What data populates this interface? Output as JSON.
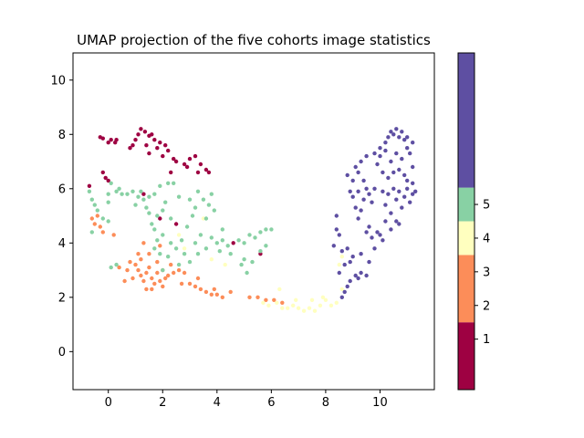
{
  "chart_data": {
    "type": "scatter",
    "title": "UMAP projection of the five cohorts image statistics",
    "xlabel": "",
    "ylabel": "",
    "xlim": [
      -1.3,
      12.0
    ],
    "ylim": [
      -1.4,
      11.0
    ],
    "x_ticks": [
      0,
      2,
      4,
      6,
      8,
      10
    ],
    "y_ticks": [
      0,
      2,
      4,
      6,
      8,
      10
    ],
    "x_tick_labels": [
      "0",
      "2",
      "4",
      "6",
      "8",
      "10"
    ],
    "y_tick_labels": [
      "0",
      "2",
      "4",
      "6",
      "8",
      "10"
    ],
    "grid": false,
    "marker_size": "small",
    "series": [
      {
        "color": "#9e0142",
        "points": [
          [
            -0.3,
            7.9
          ],
          [
            -0.2,
            7.85
          ],
          [
            0.0,
            7.7
          ],
          [
            0.1,
            7.8
          ],
          [
            0.25,
            7.7
          ],
          [
            0.3,
            7.8
          ],
          [
            0.9,
            7.6
          ],
          [
            1.0,
            7.8
          ],
          [
            1.1,
            8.0
          ],
          [
            1.2,
            8.2
          ],
          [
            1.35,
            8.1
          ],
          [
            1.5,
            7.95
          ],
          [
            1.6,
            8.0
          ],
          [
            1.7,
            7.8
          ],
          [
            1.8,
            7.5
          ],
          [
            1.9,
            7.7
          ],
          [
            2.1,
            7.6
          ],
          [
            2.2,
            7.4
          ],
          [
            1.4,
            7.6
          ],
          [
            2.0,
            7.2
          ],
          [
            2.5,
            7.0
          ],
          [
            2.8,
            6.9
          ],
          [
            3.0,
            7.1
          ],
          [
            3.2,
            7.2
          ],
          [
            3.4,
            6.9
          ],
          [
            3.6,
            6.7
          ],
          [
            3.7,
            6.6
          ],
          [
            3.3,
            6.6
          ],
          [
            2.9,
            6.8
          ],
          [
            2.3,
            6.6
          ],
          [
            -0.2,
            6.6
          ],
          [
            -0.1,
            6.4
          ],
          [
            0.0,
            6.3
          ],
          [
            -0.7,
            6.1
          ],
          [
            1.9,
            4.9
          ],
          [
            2.5,
            4.7
          ],
          [
            4.6,
            4.0
          ],
          [
            5.6,
            3.6
          ],
          [
            1.3,
            5.8
          ],
          [
            1.5,
            7.3
          ],
          [
            0.8,
            7.5
          ],
          [
            2.4,
            7.1
          ]
        ]
      },
      {
        "color": "#fc8d59",
        "points": [
          [
            -0.6,
            4.9
          ],
          [
            -0.5,
            4.7
          ],
          [
            -0.3,
            4.6
          ],
          [
            -0.2,
            4.4
          ],
          [
            0.2,
            4.3
          ],
          [
            -0.4,
            5.0
          ],
          [
            0.4,
            3.1
          ],
          [
            0.7,
            3.0
          ],
          [
            0.8,
            3.3
          ],
          [
            1.0,
            3.2
          ],
          [
            1.1,
            3.0
          ],
          [
            1.2,
            2.8
          ],
          [
            0.9,
            2.7
          ],
          [
            1.3,
            2.6
          ],
          [
            1.4,
            2.9
          ],
          [
            1.5,
            3.1
          ],
          [
            1.6,
            2.7
          ],
          [
            1.7,
            2.5
          ],
          [
            1.8,
            2.9
          ],
          [
            1.9,
            2.6
          ],
          [
            2.0,
            2.4
          ],
          [
            2.1,
            2.7
          ],
          [
            2.2,
            2.8
          ],
          [
            2.4,
            2.9
          ],
          [
            2.6,
            3.0
          ],
          [
            2.8,
            2.9
          ],
          [
            1.2,
            3.4
          ],
          [
            1.5,
            3.6
          ],
          [
            1.8,
            3.3
          ],
          [
            1.3,
            4.0
          ],
          [
            1.4,
            2.3
          ],
          [
            1.6,
            2.3
          ],
          [
            3.0,
            2.5
          ],
          [
            3.2,
            2.4
          ],
          [
            3.4,
            2.3
          ],
          [
            3.6,
            2.2
          ],
          [
            3.8,
            2.1
          ],
          [
            4.0,
            2.1
          ],
          [
            4.2,
            2.0
          ],
          [
            3.9,
            2.3
          ],
          [
            4.5,
            2.2
          ],
          [
            5.2,
            2.0
          ],
          [
            5.5,
            2.0
          ],
          [
            5.8,
            1.9
          ],
          [
            6.1,
            1.9
          ],
          [
            6.4,
            1.8
          ],
          [
            0.6,
            2.6
          ],
          [
            2.0,
            3.0
          ],
          [
            2.3,
            3.2
          ],
          [
            1.9,
            3.9
          ],
          [
            2.7,
            2.5
          ],
          [
            3.3,
            2.7
          ],
          [
            1.1,
            3.6
          ]
        ]
      },
      {
        "color": "#ffffbf",
        "points": [
          [
            5.7,
            1.8
          ],
          [
            5.9,
            1.7
          ],
          [
            6.2,
            1.8
          ],
          [
            6.4,
            1.6
          ],
          [
            6.6,
            1.6
          ],
          [
            6.8,
            1.7
          ],
          [
            7.0,
            1.6
          ],
          [
            7.2,
            1.5
          ],
          [
            7.4,
            1.6
          ],
          [
            7.6,
            1.5
          ],
          [
            7.8,
            1.7
          ],
          [
            8.0,
            1.9
          ],
          [
            8.2,
            1.7
          ],
          [
            8.4,
            1.8
          ],
          [
            7.5,
            1.9
          ],
          [
            6.9,
            1.9
          ],
          [
            6.3,
            2.3
          ],
          [
            7.9,
            2.0
          ],
          [
            8.6,
            2.3
          ],
          [
            8.5,
            3.2
          ],
          [
            8.6,
            3.5
          ],
          [
            3.8,
            3.4
          ],
          [
            2.8,
            3.8
          ],
          [
            3.5,
            4.9
          ],
          [
            4.3,
            3.2
          ],
          [
            2.6,
            4.3
          ]
        ]
      },
      {
        "color": "#88d1a4",
        "points": [
          [
            -0.7,
            5.9
          ],
          [
            -0.6,
            5.6
          ],
          [
            -0.5,
            5.4
          ],
          [
            -0.4,
            5.2
          ],
          [
            -0.2,
            4.9
          ],
          [
            0.0,
            4.8
          ],
          [
            0.0,
            5.8
          ],
          [
            0.3,
            5.9
          ],
          [
            0.5,
            5.8
          ],
          [
            0.7,
            5.8
          ],
          [
            0.4,
            6.0
          ],
          [
            0.1,
            6.2
          ],
          [
            0.9,
            5.9
          ],
          [
            1.1,
            5.7
          ],
          [
            1.3,
            5.6
          ],
          [
            1.5,
            5.7
          ],
          [
            1.7,
            5.8
          ],
          [
            1.2,
            5.9
          ],
          [
            1.9,
            6.1
          ],
          [
            2.2,
            6.2
          ],
          [
            2.4,
            6.2
          ],
          [
            2.1,
            5.5
          ],
          [
            2.3,
            4.9
          ],
          [
            2.6,
            5.7
          ],
          [
            1.5,
            5.1
          ],
          [
            1.6,
            4.7
          ],
          [
            1.7,
            4.5
          ],
          [
            1.8,
            4.1
          ],
          [
            1.7,
            3.8
          ],
          [
            1.9,
            3.6
          ],
          [
            2.0,
            4.3
          ],
          [
            2.3,
            4.0
          ],
          [
            2.5,
            3.8
          ],
          [
            2.7,
            4.1
          ],
          [
            2.8,
            3.6
          ],
          [
            3.0,
            3.3
          ],
          [
            2.9,
            4.6
          ],
          [
            3.1,
            5.0
          ],
          [
            3.2,
            5.3
          ],
          [
            3.0,
            5.6
          ],
          [
            3.3,
            5.9
          ],
          [
            3.5,
            5.6
          ],
          [
            3.7,
            5.4
          ],
          [
            3.8,
            5.8
          ],
          [
            3.9,
            5.2
          ],
          [
            3.6,
            4.9
          ],
          [
            3.4,
            4.3
          ],
          [
            3.2,
            4.0
          ],
          [
            3.3,
            3.6
          ],
          [
            3.6,
            3.8
          ],
          [
            3.8,
            4.2
          ],
          [
            4.0,
            4.0
          ],
          [
            4.2,
            4.1
          ],
          [
            4.4,
            3.9
          ],
          [
            4.1,
            3.7
          ],
          [
            4.8,
            4.1
          ],
          [
            5.0,
            4.0
          ],
          [
            5.2,
            4.3
          ],
          [
            5.4,
            4.2
          ],
          [
            5.6,
            4.4
          ],
          [
            5.8,
            4.5
          ],
          [
            6.0,
            4.5
          ],
          [
            5.8,
            3.9
          ],
          [
            5.6,
            3.7
          ],
          [
            5.0,
            3.4
          ],
          [
            5.3,
            3.3
          ],
          [
            4.9,
            3.2
          ],
          [
            5.1,
            2.9
          ],
          [
            0.1,
            3.1
          ],
          [
            0.3,
            3.2
          ],
          [
            2.0,
            3.0
          ],
          [
            2.2,
            3.5
          ],
          [
            1.4,
            5.3
          ],
          [
            2.0,
            5.2
          ],
          [
            1.8,
            5.0
          ],
          [
            2.6,
            3.2
          ],
          [
            4.5,
            3.6
          ],
          [
            4.2,
            4.5
          ],
          [
            0.0,
            5.5
          ],
          [
            1.0,
            5.4
          ],
          [
            -0.6,
            4.4
          ]
        ]
      },
      {
        "color": "#5e4fa2",
        "points": [
          [
            8.6,
            2.0
          ],
          [
            8.7,
            2.2
          ],
          [
            8.8,
            2.4
          ],
          [
            8.9,
            2.6
          ],
          [
            9.1,
            2.8
          ],
          [
            9.3,
            2.9
          ],
          [
            9.5,
            2.8
          ],
          [
            9.2,
            2.7
          ],
          [
            8.5,
            2.9
          ],
          [
            8.7,
            3.2
          ],
          [
            8.9,
            3.3
          ],
          [
            8.8,
            3.8
          ],
          [
            9.0,
            3.5
          ],
          [
            9.3,
            3.6
          ],
          [
            9.6,
            3.3
          ],
          [
            9.8,
            3.8
          ],
          [
            9.7,
            4.2
          ],
          [
            9.9,
            4.4
          ],
          [
            10.1,
            4.1
          ],
          [
            9.6,
            4.6
          ],
          [
            8.4,
            4.5
          ],
          [
            8.5,
            4.3
          ],
          [
            8.3,
            3.9
          ],
          [
            8.6,
            3.7
          ],
          [
            8.4,
            5.0
          ],
          [
            9.0,
            5.7
          ],
          [
            9.2,
            5.9
          ],
          [
            9.4,
            5.6
          ],
          [
            9.5,
            6.0
          ],
          [
            9.6,
            5.8
          ],
          [
            9.1,
            5.3
          ],
          [
            9.3,
            5.2
          ],
          [
            10.1,
            5.9
          ],
          [
            10.3,
            5.8
          ],
          [
            10.5,
            6.0
          ],
          [
            10.2,
            5.4
          ],
          [
            10.6,
            5.6
          ],
          [
            10.7,
            5.9
          ],
          [
            10.9,
            5.7
          ],
          [
            11.0,
            6.0
          ],
          [
            11.2,
            5.8
          ],
          [
            11.3,
            5.9
          ],
          [
            11.1,
            5.5
          ],
          [
            10.8,
            5.3
          ],
          [
            10.4,
            5.1
          ],
          [
            10.6,
            4.8
          ],
          [
            10.4,
            4.5
          ],
          [
            10.7,
            4.7
          ],
          [
            9.0,
            6.3
          ],
          [
            9.2,
            6.6
          ],
          [
            9.3,
            7.0
          ],
          [
            9.1,
            6.8
          ],
          [
            8.8,
            6.5
          ],
          [
            9.5,
            7.2
          ],
          [
            9.8,
            7.3
          ],
          [
            10.0,
            7.5
          ],
          [
            10.2,
            7.4
          ],
          [
            10.4,
            7.0
          ],
          [
            10.6,
            7.3
          ],
          [
            10.8,
            7.1
          ],
          [
            11.0,
            7.5
          ],
          [
            11.1,
            7.3
          ],
          [
            11.2,
            7.7
          ],
          [
            10.9,
            7.8
          ],
          [
            10.7,
            7.9
          ],
          [
            10.5,
            8.0
          ],
          [
            10.3,
            7.9
          ],
          [
            10.4,
            8.1
          ],
          [
            10.6,
            8.2
          ],
          [
            10.8,
            8.1
          ],
          [
            11.0,
            7.9
          ],
          [
            10.2,
            7.7
          ],
          [
            10.0,
            7.2
          ],
          [
            9.9,
            6.9
          ],
          [
            10.1,
            6.6
          ],
          [
            10.3,
            6.4
          ],
          [
            10.5,
            6.6
          ],
          [
            10.7,
            6.7
          ],
          [
            11.2,
            6.8
          ],
          [
            11.0,
            6.3
          ],
          [
            10.9,
            6.5
          ],
          [
            11.2,
            6.2
          ],
          [
            9.8,
            6.0
          ],
          [
            9.7,
            5.5
          ],
          [
            9.2,
            4.9
          ],
          [
            9.5,
            4.4
          ],
          [
            10.2,
            4.8
          ],
          [
            10.0,
            4.3
          ],
          [
            9.4,
            6.3
          ],
          [
            8.9,
            5.9
          ]
        ]
      }
    ],
    "colorbar": {
      "ticks": [
        "1",
        "2",
        "3",
        "4",
        "5"
      ],
      "segments": [
        {
          "color": "#9e0142",
          "from": 0.0,
          "to": 0.2
        },
        {
          "color": "#fc8d59",
          "from": 0.2,
          "to": 0.4
        },
        {
          "color": "#ffffbf",
          "from": 0.4,
          "to": 0.5
        },
        {
          "color": "#88d1a4",
          "from": 0.5,
          "to": 0.6
        },
        {
          "color": "#5e4fa2",
          "from": 0.6,
          "to": 1.0
        }
      ],
      "tick_positions": [
        0.15,
        0.25,
        0.35,
        0.45,
        0.55
      ]
    }
  }
}
